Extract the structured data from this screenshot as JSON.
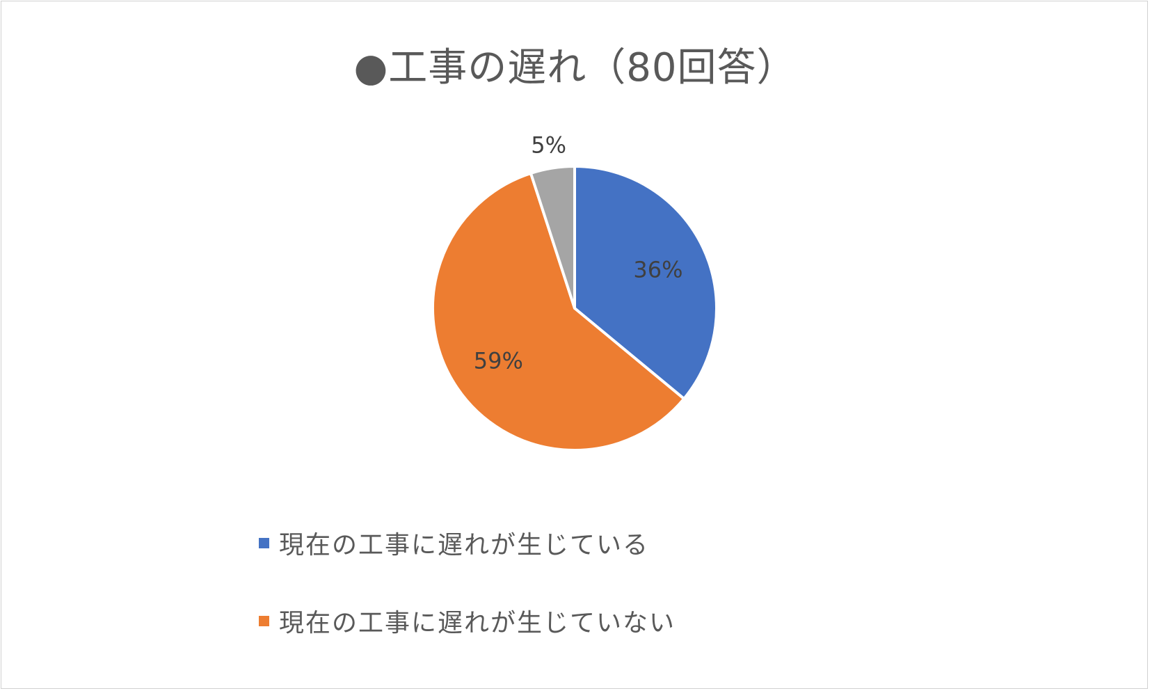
{
  "chart_data": {
    "type": "pie",
    "title": "●工事の遅れ（80回答）",
    "slices": [
      {
        "label": "現在の工事に遅れが生じている",
        "value": 36,
        "data_label": "36%",
        "color": "#4472C4"
      },
      {
        "label": "現在の工事に遅れが生じていない",
        "value": 59,
        "data_label": "59%",
        "color": "#ED7D31"
      },
      {
        "label": "",
        "value": 5,
        "data_label": "5%",
        "color": "#A5A5A5"
      }
    ],
    "legend_position": "bottom"
  }
}
